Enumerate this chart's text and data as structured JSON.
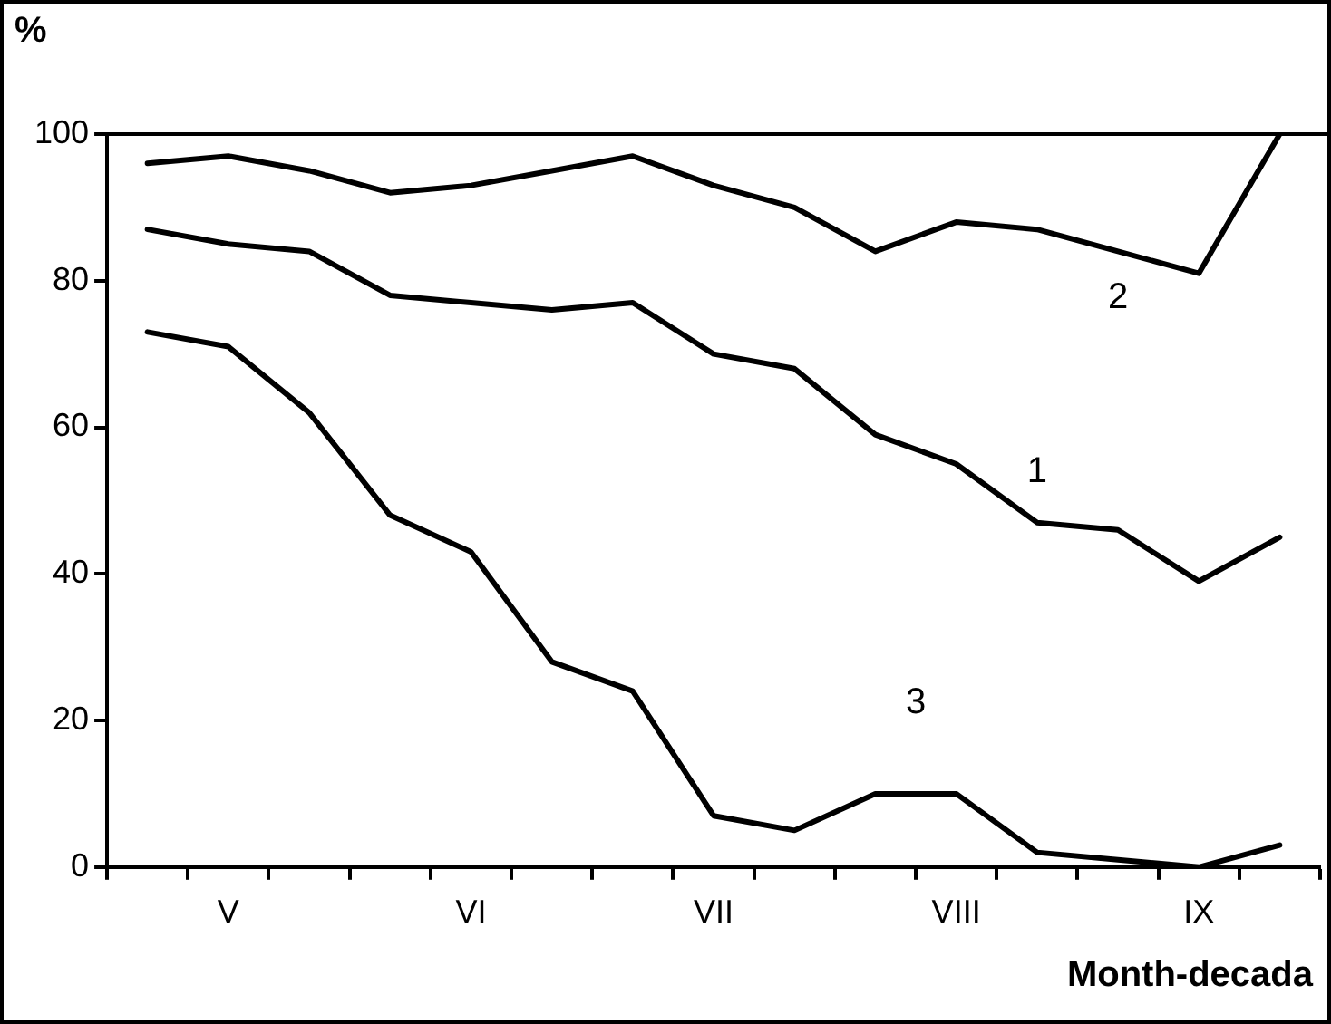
{
  "chart_data": {
    "type": "line",
    "xlabel": "Month-decada",
    "ylabel": "%",
    "categories": [
      null,
      "V",
      null,
      null,
      "VI",
      null,
      null,
      "VII",
      null,
      null,
      "VIII",
      null,
      null,
      "IX",
      null
    ],
    "series": [
      {
        "name": "1",
        "color": "#000000",
        "values": [
          87,
          85,
          84,
          78,
          77,
          76,
          77,
          70,
          68,
          59,
          55,
          47,
          46,
          39,
          45
        ]
      },
      {
        "name": "2",
        "color": "#000000",
        "values": [
          96,
          97,
          95,
          92,
          93,
          95,
          97,
          93,
          90,
          84,
          88,
          87,
          84,
          81,
          100
        ]
      },
      {
        "name": "3",
        "color": "#000000",
        "values": [
          73,
          71,
          62,
          48,
          43,
          28,
          24,
          7,
          5,
          10,
          10,
          2,
          1,
          0,
          3
        ]
      }
    ],
    "ylim": [
      0,
      100
    ],
    "yticks": [
      0,
      20,
      40,
      60,
      80,
      100
    ],
    "grid": false,
    "legend": false,
    "marker": "none",
    "line_style": "solid"
  }
}
